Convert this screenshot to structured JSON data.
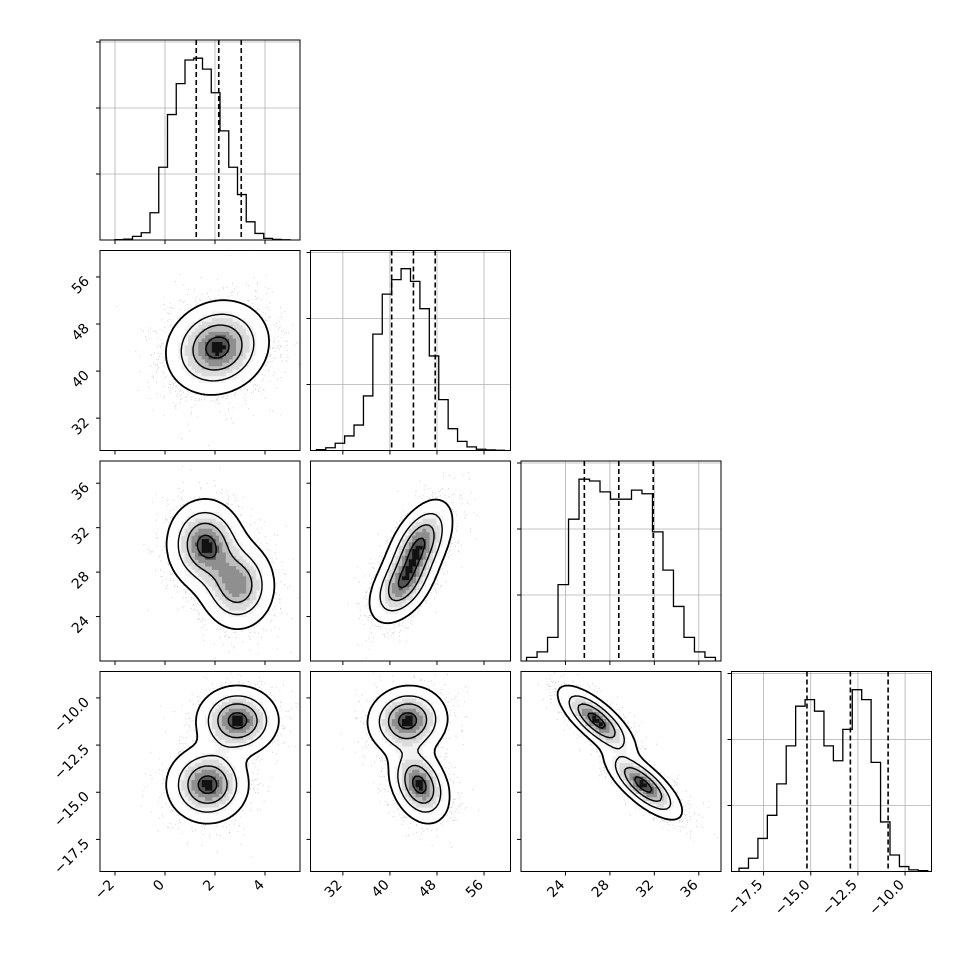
{
  "chart_data": {
    "type": "corner",
    "title": "",
    "grid": true,
    "params": [
      {
        "name": "",
        "range": [
          -2.6,
          5.4
        ],
        "ticks": [
          -2,
          0,
          2,
          4
        ],
        "tick_labels": [
          "−2",
          "0",
          "2",
          "4"
        ],
        "quantiles": [
          1.25,
          2.15,
          3.05
        ],
        "hist_x_range": [
          -2.0,
          5.0
        ],
        "hist_counts": [
          0.002,
          0.005,
          0.02,
          0.04,
          0.15,
          0.4,
          0.69,
          0.86,
          0.99,
          1.0,
          0.94,
          0.81,
          0.6,
          0.4,
          0.25,
          0.1,
          0.036,
          0.009,
          0.003,
          0.001
        ]
      },
      {
        "name": "",
        "range": [
          26.5,
          60.5
        ],
        "ticks": [
          32,
          40,
          48,
          56
        ],
        "tick_labels": [
          "32",
          "40",
          "48",
          "56"
        ],
        "quantiles": [
          40.3,
          44.0,
          47.7
        ],
        "hist_x_range": [
          27.5,
          59.5
        ],
        "hist_counts": [
          0.005,
          0.015,
          0.04,
          0.08,
          0.14,
          0.3,
          0.64,
          0.86,
          0.94,
          1.0,
          0.93,
          0.78,
          0.52,
          0.28,
          0.12,
          0.05,
          0.02,
          0.007,
          0.003,
          0.001
        ]
      },
      {
        "name": "",
        "range": [
          20.0,
          38.0
        ],
        "ticks": [
          24,
          28,
          32,
          36
        ],
        "tick_labels": [
          "24",
          "28",
          "32",
          "36"
        ],
        "quantiles": [
          25.7,
          28.8,
          31.9
        ],
        "hist_x_range": [
          20.5,
          37.5
        ],
        "hist_counts": [
          0.02,
          0.05,
          0.13,
          0.42,
          0.78,
          1.0,
          0.99,
          0.93,
          0.89,
          0.89,
          0.94,
          0.92,
          0.71,
          0.5,
          0.3,
          0.13,
          0.05,
          0.02
        ]
      },
      {
        "name": "",
        "range": [
          -19.2,
          -8.6
        ],
        "ticks": [
          -17.5,
          -15.0,
          -12.5,
          -10.0
        ],
        "tick_labels": [
          "−17.5",
          "−15.0",
          "−12.5",
          "−10.0"
        ],
        "quantiles": [
          -15.2,
          -12.9,
          -10.9
        ],
        "hist_x_range": [
          -18.8,
          -8.8
        ],
        "hist_counts": [
          0.02,
          0.08,
          0.2,
          0.34,
          0.53,
          0.76,
          1.0,
          1.04,
          0.97,
          0.76,
          0.67,
          0.86,
          1.1,
          1.04,
          0.66,
          0.3,
          0.1,
          0.03,
          0.01,
          0.005
        ]
      }
    ],
    "pairs": [
      {
        "x": 0,
        "y": 1,
        "components": [
          {
            "mx": 2.1,
            "my": 44.0,
            "sx": 1.0,
            "sy": 3.9,
            "rho": 0.12,
            "w": 1.0
          }
        ]
      },
      {
        "x": 0,
        "y": 2,
        "components": [
          {
            "mx": 1.6,
            "my": 30.5,
            "sx": 0.75,
            "sy": 2.0,
            "rho": 0.0,
            "w": 1.0
          },
          {
            "mx": 2.9,
            "my": 26.8,
            "sx": 0.75,
            "sy": 2.0,
            "rho": 0.0,
            "w": 0.85
          }
        ]
      },
      {
        "x": 1,
        "y": 2,
        "components": [
          {
            "mx": 45.0,
            "my": 30.5,
            "sx": 2.8,
            "sy": 2.0,
            "rho": 0.5,
            "w": 1.0
          },
          {
            "mx": 42.0,
            "my": 26.7,
            "sx": 2.8,
            "sy": 1.7,
            "rho": 0.45,
            "w": 0.85
          }
        ]
      },
      {
        "x": 0,
        "y": 3,
        "components": [
          {
            "mx": 2.9,
            "my": -11.2,
            "sx": 0.8,
            "sy": 0.9,
            "rho": 0.0,
            "w": 1.0
          },
          {
            "mx": 1.7,
            "my": -14.6,
            "sx": 0.8,
            "sy": 1.0,
            "rho": 0.0,
            "w": 1.0
          }
        ]
      },
      {
        "x": 1,
        "y": 3,
        "components": [
          {
            "mx": 43.0,
            "my": -11.2,
            "sx": 3.3,
            "sy": 0.9,
            "rho": 0.05,
            "w": 1.0
          },
          {
            "mx": 45.0,
            "my": -14.6,
            "sx": 2.5,
            "sy": 1.0,
            "rho": -0.3,
            "w": 1.0
          }
        ]
      },
      {
        "x": 2,
        "y": 3,
        "components": [
          {
            "mx": 26.8,
            "my": -11.2,
            "sx": 1.7,
            "sy": 0.9,
            "rho": -0.75,
            "w": 1.0
          },
          {
            "mx": 31.0,
            "my": -14.6,
            "sx": 1.7,
            "sy": 0.9,
            "rho": -0.75,
            "w": 1.0
          }
        ]
      }
    ]
  }
}
